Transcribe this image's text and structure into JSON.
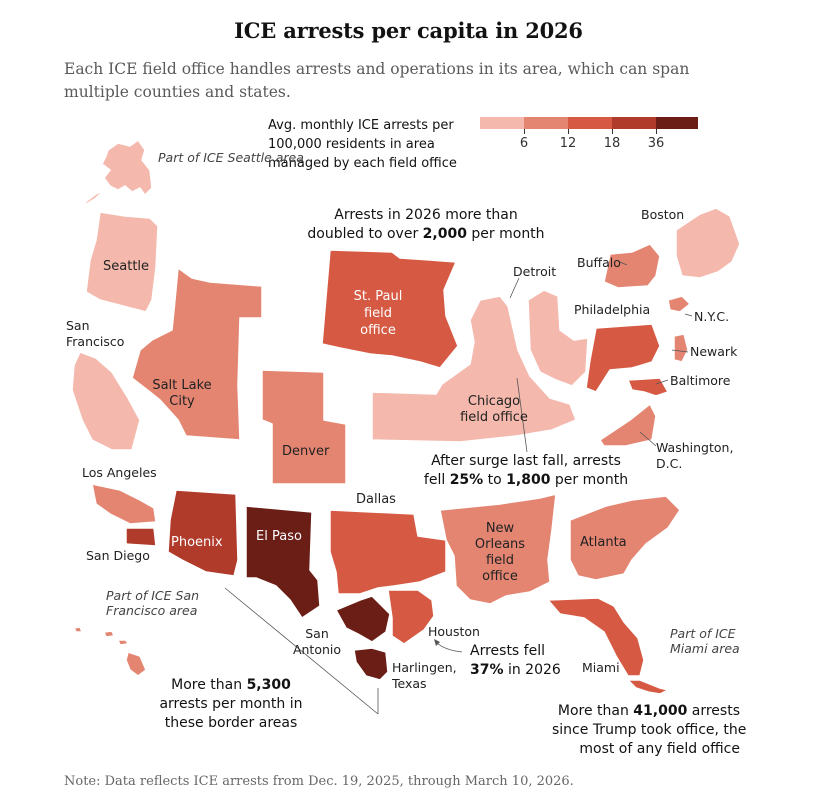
{
  "title": "ICE arrests per capita in 2026",
  "subtitle": "Each ICE field office handles arrests and operations in its area, which can span multiple counties and states.",
  "legend": {
    "title": "Avg. monthly ICE arrests per 100,000 residents in area managed by each field office",
    "ticks": [
      "6",
      "12",
      "18",
      "36"
    ],
    "colors": [
      "#f4b8ac",
      "#e48572",
      "#d65a43",
      "#b03b2a",
      "#6b1e16"
    ]
  },
  "colors": {
    "c1": "#f4b8ac",
    "c2": "#e48572",
    "c3": "#d65a43",
    "c4": "#b03b2a",
    "c5": "#6b1e16",
    "border": "#ffffff",
    "line": "#555555"
  },
  "offices": {
    "seattle": "Seattle",
    "seattle_inset": "Part of ICE Seattle area",
    "san_francisco": "San Francisco",
    "sf_inset": "Part of ICE San Francisco area",
    "los_angeles": "Los Angeles",
    "san_diego": "San Diego",
    "salt_lake": "Salt Lake City",
    "phoenix": "Phoenix",
    "el_paso": "El Paso",
    "denver": "Denver",
    "st_paul": "St. Paul field office",
    "chicago": "Chicago field office",
    "dallas": "Dallas",
    "san_antonio": "San Antonio",
    "houston": "Houston",
    "harlingen": "Harlingen, Texas",
    "new_orleans": "New Orleans field office",
    "atlanta": "Atlanta",
    "miami": "Miami",
    "miami_inset": "Part of ICE Miami area",
    "detroit": "Detroit",
    "buffalo": "Buffalo",
    "boston": "Boston",
    "philadelphia": "Philadelphia",
    "nyc": "N.Y.C.",
    "newark": "Newark",
    "baltimore": "Baltimore",
    "washington": "Washington, D.C."
  },
  "annotations": {
    "st_paul_a": "Arrests in 2026 more than",
    "st_paul_b": "doubled to over ",
    "st_paul_bold": "2,000",
    "st_paul_c": " per month",
    "chicago_a": "After surge last fall, arrests",
    "chicago_b": "fell ",
    "chicago_pct": "25%",
    "chicago_c": " to ",
    "chicago_num": "1,800",
    "chicago_d": " per month",
    "houston_a": "Arrests fell",
    "houston_pct": "37%",
    "houston_b": " in 2026",
    "border_a": "More than ",
    "border_num": "5,300",
    "border_b": "arrests per month in",
    "border_c": "these border areas",
    "miami_a": "More than ",
    "miami_num": "41,000",
    "miami_b": " arrests",
    "miami_c": "since Trump took office, the",
    "miami_d": "most of any field office"
  },
  "note": "Note: Data reflects ICE arrests from Dec. 19, 2025, through March 10, 2026."
}
